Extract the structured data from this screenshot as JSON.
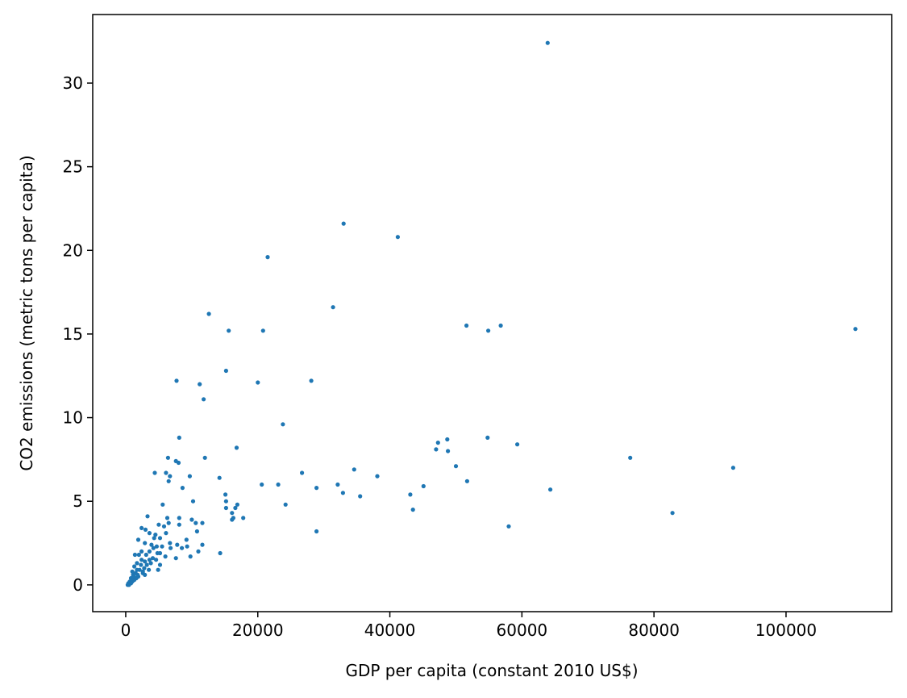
{
  "chart_data": {
    "type": "scatter",
    "title": "",
    "xlabel": "GDP per capita (constant 2010 US$)",
    "ylabel": "CO2 emissions (metric tons per capita)",
    "xlim": [
      -5000,
      116000
    ],
    "ylim": [
      -1.6,
      34.1
    ],
    "xticks": [
      0,
      20000,
      40000,
      60000,
      80000,
      100000
    ],
    "yticks": [
      0,
      5,
      10,
      15,
      20,
      25,
      30
    ],
    "grid": false,
    "legend": "none",
    "color": "#1f77b4",
    "points": [
      [
        63900,
        32.4
      ],
      [
        33000,
        21.6
      ],
      [
        41200,
        20.8
      ],
      [
        21500,
        19.6
      ],
      [
        31400,
        16.6
      ],
      [
        12600,
        16.2
      ],
      [
        51600,
        15.5
      ],
      [
        56800,
        15.5
      ],
      [
        110500,
        15.3
      ],
      [
        15600,
        15.2
      ],
      [
        20800,
        15.2
      ],
      [
        54900,
        15.2
      ],
      [
        15200,
        12.8
      ],
      [
        7700,
        12.2
      ],
      [
        28100,
        12.2
      ],
      [
        11200,
        12.0
      ],
      [
        20000,
        12.1
      ],
      [
        11800,
        11.1
      ],
      [
        23800,
        9.6
      ],
      [
        8100,
        8.8
      ],
      [
        48700,
        8.7
      ],
      [
        54800,
        8.8
      ],
      [
        47300,
        8.5
      ],
      [
        59300,
        8.4
      ],
      [
        16800,
        8.2
      ],
      [
        47000,
        8.1
      ],
      [
        48800,
        8.0
      ],
      [
        6400,
        7.6
      ],
      [
        7600,
        7.4
      ],
      [
        8000,
        7.3
      ],
      [
        12000,
        7.6
      ],
      [
        76400,
        7.6
      ],
      [
        50000,
        7.1
      ],
      [
        92000,
        7.0
      ],
      [
        34600,
        6.9
      ],
      [
        4400,
        6.7
      ],
      [
        6100,
        6.7
      ],
      [
        26700,
        6.7
      ],
      [
        6700,
        6.5
      ],
      [
        9700,
        6.5
      ],
      [
        38100,
        6.5
      ],
      [
        14200,
        6.4
      ],
      [
        6500,
        6.2
      ],
      [
        20600,
        6.0
      ],
      [
        23100,
        6.0
      ],
      [
        51700,
        6.2
      ],
      [
        28900,
        5.8
      ],
      [
        32100,
        6.0
      ],
      [
        45100,
        5.9
      ],
      [
        8600,
        5.8
      ],
      [
        64300,
        5.7
      ],
      [
        15100,
        5.4
      ],
      [
        32900,
        5.5
      ],
      [
        35500,
        5.3
      ],
      [
        43100,
        5.4
      ],
      [
        15200,
        5.0
      ],
      [
        10200,
        5.0
      ],
      [
        5600,
        4.8
      ],
      [
        16900,
        4.8
      ],
      [
        24200,
        4.8
      ],
      [
        15200,
        4.6
      ],
      [
        16600,
        4.6
      ],
      [
        43500,
        4.5
      ],
      [
        16100,
        4.3
      ],
      [
        82800,
        4.3
      ],
      [
        3300,
        4.1
      ],
      [
        16300,
        4.0
      ],
      [
        17800,
        4.0
      ],
      [
        6300,
        4.0
      ],
      [
        8100,
        4.0
      ],
      [
        16100,
        3.9
      ],
      [
        10000,
        3.9
      ],
      [
        10600,
        3.7
      ],
      [
        8100,
        3.6
      ],
      [
        11600,
        3.7
      ],
      [
        6500,
        3.7
      ],
      [
        5000,
        3.6
      ],
      [
        5800,
        3.5
      ],
      [
        58000,
        3.5
      ],
      [
        2400,
        3.4
      ],
      [
        3000,
        3.3
      ],
      [
        3600,
        3.1
      ],
      [
        10800,
        3.2
      ],
      [
        6100,
        3.1
      ],
      [
        28900,
        3.2
      ],
      [
        4500,
        3.0
      ],
      [
        4300,
        2.8
      ],
      [
        1900,
        2.7
      ],
      [
        5200,
        2.8
      ],
      [
        9200,
        2.7
      ],
      [
        6700,
        2.5
      ],
      [
        2900,
        2.5
      ],
      [
        3900,
        2.4
      ],
      [
        7800,
        2.4
      ],
      [
        11600,
        2.4
      ],
      [
        4700,
        2.3
      ],
      [
        5500,
        2.3
      ],
      [
        9300,
        2.3
      ],
      [
        4200,
        2.2
      ],
      [
        8500,
        2.2
      ],
      [
        6800,
        2.2
      ],
      [
        11000,
        2.0
      ],
      [
        2400,
        2.0
      ],
      [
        3600,
        2.0
      ],
      [
        4800,
        1.9
      ],
      [
        5200,
        1.9
      ],
      [
        14300,
        1.9
      ],
      [
        1400,
        1.8
      ],
      [
        2000,
        1.8
      ],
      [
        3100,
        1.8
      ],
      [
        6000,
        1.7
      ],
      [
        7600,
        1.6
      ],
      [
        9800,
        1.7
      ],
      [
        4100,
        1.6
      ],
      [
        3600,
        1.5
      ],
      [
        2400,
        1.5
      ],
      [
        2900,
        1.4
      ],
      [
        1700,
        1.3
      ],
      [
        3200,
        1.2
      ],
      [
        5200,
        1.2
      ],
      [
        2300,
        1.2
      ],
      [
        1300,
        1.1
      ],
      [
        2800,
        1.0
      ],
      [
        1700,
        0.9
      ],
      [
        2100,
        0.9
      ],
      [
        3500,
        0.9
      ],
      [
        4900,
        0.9
      ],
      [
        2600,
        0.7
      ],
      [
        1500,
        0.7
      ],
      [
        1100,
        0.6
      ],
      [
        2900,
        0.6
      ],
      [
        1900,
        0.5
      ],
      [
        1200,
        0.5
      ],
      [
        800,
        0.4
      ],
      [
        1600,
        0.4
      ],
      [
        900,
        0.3
      ],
      [
        1300,
        0.3
      ],
      [
        600,
        0.2
      ],
      [
        1000,
        0.2
      ],
      [
        400,
        0.1
      ],
      [
        700,
        0.1
      ],
      [
        300,
        0.0
      ],
      [
        500,
        0.0
      ],
      [
        800,
        0.1
      ],
      [
        1100,
        0.3
      ],
      [
        1800,
        0.6
      ],
      [
        2600,
        0.8
      ],
      [
        3800,
        1.3
      ],
      [
        4600,
        1.5
      ],
      [
        1000,
        0.8
      ]
    ]
  }
}
